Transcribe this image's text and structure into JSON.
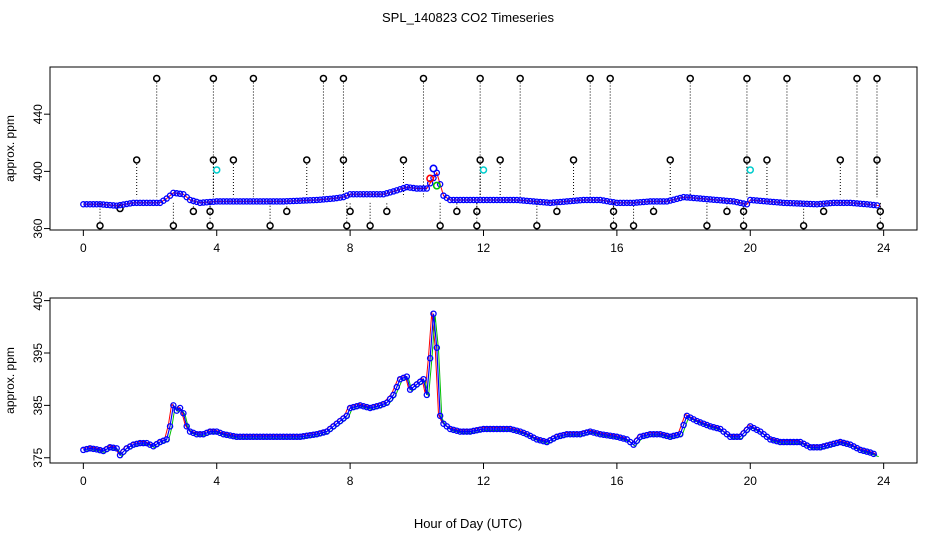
{
  "figure": {
    "title": "SPL_140823  CO2 Timeseries",
    "xlabel": "Hour of Day (UTC)"
  },
  "chart_data": [
    {
      "type": "scatter",
      "ylabel": "approx. ppm",
      "xlim": [
        -1,
        25
      ],
      "ylim": [
        359,
        473
      ],
      "xticks": [
        0,
        4,
        8,
        12,
        16,
        20,
        24
      ],
      "yticks": [
        360,
        400,
        440
      ],
      "colors": {
        "series": "#0000ff",
        "flag_red": "#ff0000",
        "flag_green": "#00c000",
        "dotted_line": "#000000",
        "outlier_marker": "#000000",
        "cyan_marker": "#00cccc"
      },
      "baseline": [
        [
          0,
          377
        ],
        [
          0.5,
          377
        ],
        [
          1,
          376
        ],
        [
          1.5,
          378
        ],
        [
          2,
          378
        ],
        [
          2.3,
          378
        ],
        [
          2.5,
          381
        ],
        [
          2.7,
          385
        ],
        [
          3,
          384
        ],
        [
          3.2,
          380
        ],
        [
          3.5,
          378
        ],
        [
          4,
          379
        ],
        [
          5,
          379
        ],
        [
          6,
          379
        ],
        [
          7,
          380
        ],
        [
          7.5,
          381
        ],
        [
          7.8,
          382
        ],
        [
          8,
          384
        ],
        [
          9,
          384
        ],
        [
          9.3,
          386
        ],
        [
          9.7,
          389
        ],
        [
          10,
          388
        ],
        [
          10.3,
          388
        ],
        [
          10.6,
          399
        ],
        [
          10.8,
          383
        ],
        [
          11,
          380
        ],
        [
          12,
          380
        ],
        [
          13,
          380
        ],
        [
          13.5,
          379
        ],
        [
          14,
          378
        ],
        [
          15,
          380
        ],
        [
          15.5,
          380
        ],
        [
          16,
          378
        ],
        [
          16.5,
          378
        ],
        [
          17,
          379
        ],
        [
          17.5,
          379
        ],
        [
          18,
          382
        ],
        [
          19,
          380
        ],
        [
          19.5,
          379
        ],
        [
          19.9,
          377
        ],
        [
          20,
          380
        ],
        [
          21,
          378
        ],
        [
          22,
          377
        ],
        [
          22.5,
          378
        ],
        [
          23,
          378
        ],
        [
          23.5,
          377
        ],
        [
          23.9,
          376
        ]
      ],
      "outliers_high": [
        [
          1.6,
          408
        ],
        [
          2.2,
          465
        ],
        [
          3.9,
          465
        ],
        [
          3.9,
          408
        ],
        [
          4.5,
          408
        ],
        [
          5.1,
          465
        ],
        [
          6.7,
          408
        ],
        [
          7.2,
          465
        ],
        [
          7.8,
          465
        ],
        [
          7.8,
          408
        ],
        [
          9.6,
          408
        ],
        [
          10.2,
          465
        ],
        [
          11.9,
          465
        ],
        [
          11.9,
          408
        ],
        [
          12.5,
          408
        ],
        [
          13.1,
          465
        ],
        [
          14.7,
          408
        ],
        [
          15.2,
          465
        ],
        [
          15.8,
          465
        ],
        [
          17.6,
          408
        ],
        [
          18.2,
          465
        ],
        [
          19.9,
          465
        ],
        [
          19.9,
          408
        ],
        [
          20.5,
          408
        ],
        [
          21.1,
          465
        ],
        [
          22.7,
          408
        ],
        [
          23.2,
          465
        ],
        [
          23.8,
          465
        ],
        [
          23.8,
          408
        ]
      ],
      "outliers_low": [
        [
          0.5,
          362
        ],
        [
          1.1,
          374
        ],
        [
          2.7,
          362
        ],
        [
          3.3,
          372
        ],
        [
          3.8,
          362
        ],
        [
          3.8,
          372
        ],
        [
          5.6,
          362
        ],
        [
          6.1,
          372
        ],
        [
          7.9,
          362
        ],
        [
          8,
          372
        ],
        [
          8.6,
          362
        ],
        [
          9.1,
          372
        ],
        [
          10.7,
          362
        ],
        [
          11.2,
          372
        ],
        [
          11.8,
          362
        ],
        [
          11.8,
          372
        ],
        [
          13.6,
          362
        ],
        [
          14.2,
          372
        ],
        [
          15.9,
          362
        ],
        [
          15.9,
          372
        ],
        [
          16.5,
          362
        ],
        [
          17.1,
          372
        ],
        [
          18.7,
          362
        ],
        [
          19.3,
          372
        ],
        [
          19.8,
          362
        ],
        [
          19.8,
          372
        ],
        [
          21.6,
          362
        ],
        [
          22.2,
          372
        ],
        [
          23.9,
          362
        ],
        [
          23.9,
          372
        ]
      ],
      "cyan_points": [
        [
          4,
          401
        ],
        [
          12,
          401
        ],
        [
          20,
          401
        ]
      ],
      "colored_points": [
        [
          10.4,
          395,
          "red"
        ],
        [
          10.6,
          390,
          "green"
        ],
        [
          10.5,
          402,
          "blue"
        ]
      ]
    },
    {
      "type": "scatter",
      "ylabel": "approx. ppm",
      "xlim": [
        -1,
        25
      ],
      "ylim": [
        374,
        405.5
      ],
      "xticks": [
        0,
        4,
        8,
        12,
        16,
        20,
        24
      ],
      "yticks": [
        375,
        385,
        395,
        405
      ],
      "colors": {
        "series": "#0000ff",
        "red_series": "#ff0000",
        "green_series": "#00c000"
      },
      "series": [
        [
          0,
          376.5
        ],
        [
          0.2,
          376.8
        ],
        [
          0.4,
          376.6
        ],
        [
          0.6,
          376.3
        ],
        [
          0.8,
          377
        ],
        [
          1,
          376.8
        ],
        [
          1.1,
          375.5
        ],
        [
          1.3,
          376.8
        ],
        [
          1.5,
          377.5
        ],
        [
          1.7,
          377.8
        ],
        [
          1.9,
          377.8
        ],
        [
          2.1,
          377.2
        ],
        [
          2.3,
          378
        ],
        [
          2.5,
          378.5
        ],
        [
          2.6,
          381
        ],
        [
          2.7,
          385
        ],
        [
          2.8,
          384
        ],
        [
          2.9,
          384.5
        ],
        [
          3,
          383.5
        ],
        [
          3.1,
          381
        ],
        [
          3.2,
          380
        ],
        [
          3.4,
          379.5
        ],
        [
          3.6,
          379.5
        ],
        [
          3.8,
          380
        ],
        [
          4,
          380
        ],
        [
          4.2,
          379.5
        ],
        [
          4.6,
          379
        ],
        [
          5,
          379
        ],
        [
          5.5,
          379
        ],
        [
          6,
          379
        ],
        [
          6.5,
          379
        ],
        [
          7,
          379.5
        ],
        [
          7.3,
          380
        ],
        [
          7.5,
          381
        ],
        [
          7.7,
          382
        ],
        [
          7.9,
          383
        ],
        [
          8,
          384.5
        ],
        [
          8.3,
          385
        ],
        [
          8.6,
          384.5
        ],
        [
          8.9,
          385
        ],
        [
          9.1,
          385.5
        ],
        [
          9.3,
          387
        ],
        [
          9.5,
          390
        ],
        [
          9.7,
          390.5
        ],
        [
          9.8,
          388
        ],
        [
          10,
          389
        ],
        [
          10.2,
          390
        ],
        [
          10.3,
          387
        ],
        [
          10.4,
          394
        ],
        [
          10.5,
          402.5
        ],
        [
          10.6,
          396
        ],
        [
          10.7,
          383
        ],
        [
          10.8,
          381.5
        ],
        [
          11,
          380.5
        ],
        [
          11.3,
          380
        ],
        [
          11.6,
          380
        ],
        [
          12,
          380.5
        ],
        [
          12.4,
          380.5
        ],
        [
          12.8,
          380.5
        ],
        [
          13.1,
          380
        ],
        [
          13.3,
          379.5
        ],
        [
          13.6,
          378.5
        ],
        [
          13.9,
          378
        ],
        [
          14.2,
          379
        ],
        [
          14.5,
          379.5
        ],
        [
          14.9,
          379.5
        ],
        [
          15.2,
          380
        ],
        [
          15.5,
          379.5
        ],
        [
          16,
          379
        ],
        [
          16.3,
          378.5
        ],
        [
          16.5,
          377.5
        ],
        [
          16.7,
          379
        ],
        [
          17,
          379.5
        ],
        [
          17.3,
          379.5
        ],
        [
          17.6,
          379
        ],
        [
          17.9,
          379.5
        ],
        [
          18.1,
          383
        ],
        [
          18.4,
          382
        ],
        [
          18.8,
          381
        ],
        [
          19.1,
          380.5
        ],
        [
          19.4,
          379
        ],
        [
          19.7,
          379
        ],
        [
          20,
          381
        ],
        [
          20.3,
          380
        ],
        [
          20.6,
          378.5
        ],
        [
          20.9,
          378
        ],
        [
          21.2,
          378
        ],
        [
          21.5,
          378
        ],
        [
          21.8,
          377
        ],
        [
          22.1,
          377
        ],
        [
          22.4,
          377.5
        ],
        [
          22.7,
          378
        ],
        [
          23,
          377.5
        ],
        [
          23.3,
          376.5
        ],
        [
          23.6,
          376
        ],
        [
          23.8,
          375.5
        ]
      ]
    }
  ]
}
